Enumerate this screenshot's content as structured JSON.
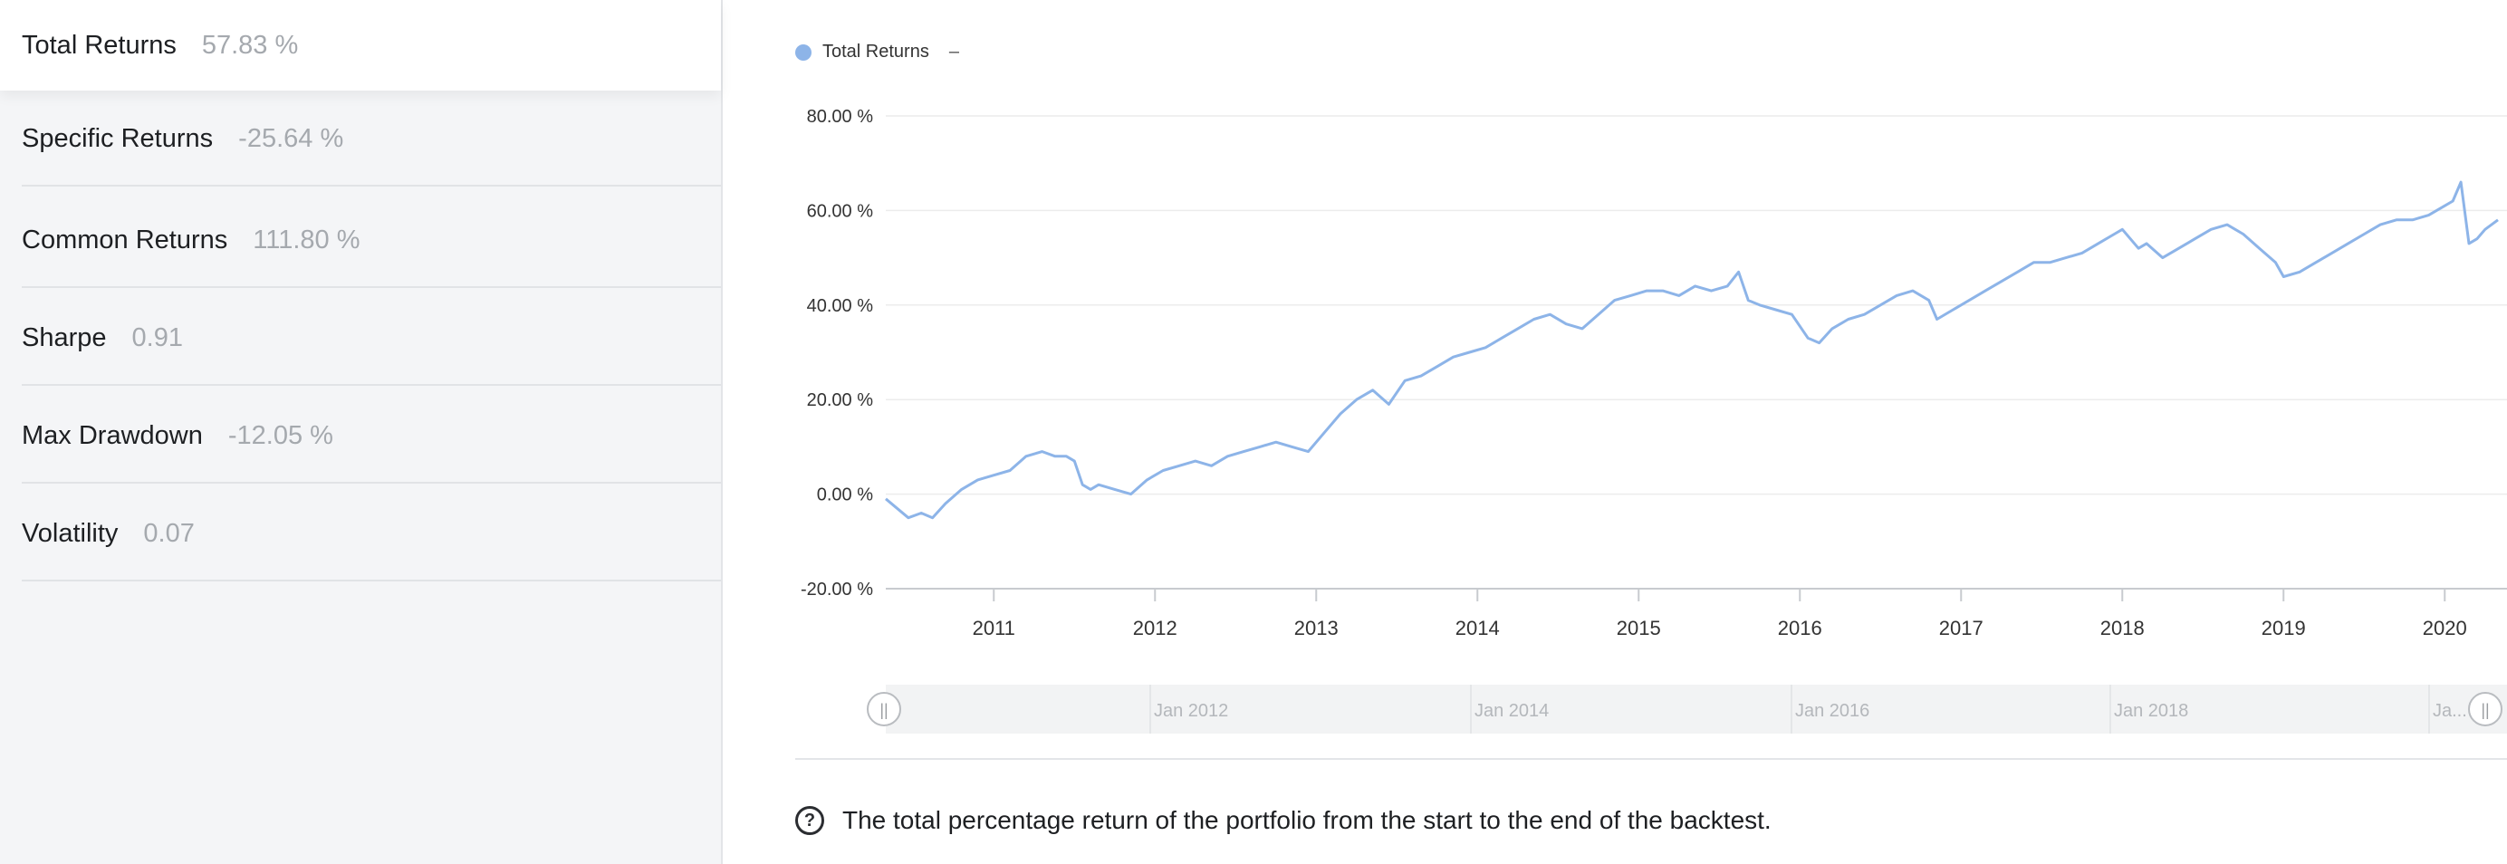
{
  "sidebar": {
    "metrics": [
      {
        "label": "Total Returns",
        "value": "57.83 %"
      },
      {
        "label": "Specific Returns",
        "value": "-25.64 %"
      },
      {
        "label": "Common Returns",
        "value": "111.80 %"
      },
      {
        "label": "Sharpe",
        "value": "0.91"
      },
      {
        "label": "Max Drawdown",
        "value": "-12.05 %"
      },
      {
        "label": "Volatility",
        "value": "0.07"
      }
    ],
    "active_index": 0
  },
  "legend": {
    "label": "Total Returns",
    "suffix": "–",
    "color": "#8db4e8"
  },
  "chart_data": {
    "type": "line",
    "title": "",
    "xlabel": "",
    "ylabel": "",
    "y_ticks": [
      "80.00 %",
      "60.00 %",
      "40.00 %",
      "20.00 %",
      "0.00 %",
      "-20.00 %"
    ],
    "ylim": [
      -20,
      80
    ],
    "x_ticks": [
      "2011",
      "2012",
      "2013",
      "2014",
      "2015",
      "2016",
      "2017",
      "2018",
      "2019",
      "2020"
    ],
    "xlim": [
      2010.33,
      2020.33
    ],
    "grid": true,
    "series": [
      {
        "name": "Total Returns",
        "color": "#8db4e8",
        "x": [
          2010.33,
          2010.4,
          2010.47,
          2010.55,
          2010.62,
          2010.7,
          2010.8,
          2010.9,
          2011.0,
          2011.1,
          2011.2,
          2011.3,
          2011.38,
          2011.45,
          2011.5,
          2011.55,
          2011.6,
          2011.65,
          2011.75,
          2011.85,
          2011.95,
          2012.05,
          2012.15,
          2012.25,
          2012.35,
          2012.45,
          2012.55,
          2012.65,
          2012.75,
          2012.85,
          2012.95,
          2013.05,
          2013.15,
          2013.25,
          2013.35,
          2013.45,
          2013.55,
          2013.65,
          2013.75,
          2013.85,
          2013.95,
          2014.05,
          2014.15,
          2014.25,
          2014.35,
          2014.45,
          2014.55,
          2014.65,
          2014.75,
          2014.85,
          2014.95,
          2015.05,
          2015.15,
          2015.25,
          2015.35,
          2015.45,
          2015.55,
          2015.62,
          2015.68,
          2015.75,
          2015.85,
          2015.95,
          2016.05,
          2016.12,
          2016.2,
          2016.3,
          2016.4,
          2016.5,
          2016.6,
          2016.7,
          2016.8,
          2016.85,
          2016.95,
          2017.05,
          2017.15,
          2017.25,
          2017.35,
          2017.45,
          2017.55,
          2017.65,
          2017.75,
          2017.85,
          2017.95,
          2018.0,
          2018.1,
          2018.15,
          2018.25,
          2018.35,
          2018.45,
          2018.55,
          2018.65,
          2018.75,
          2018.85,
          2018.95,
          2019.0,
          2019.1,
          2019.2,
          2019.3,
          2019.4,
          2019.5,
          2019.6,
          2019.7,
          2019.8,
          2019.9,
          2020.0,
          2020.05,
          2020.1,
          2020.15,
          2020.2,
          2020.25,
          2020.33
        ],
        "y": [
          -1,
          -3,
          -5,
          -4,
          -5,
          -2,
          1,
          3,
          4,
          5,
          8,
          9,
          8,
          8,
          7,
          2,
          1,
          2,
          1,
          0,
          3,
          5,
          6,
          7,
          6,
          8,
          9,
          10,
          11,
          10,
          9,
          13,
          17,
          20,
          22,
          19,
          24,
          25,
          27,
          29,
          30,
          31,
          33,
          35,
          37,
          38,
          36,
          35,
          38,
          41,
          42,
          43,
          43,
          42,
          44,
          43,
          44,
          47,
          41,
          40,
          39,
          38,
          33,
          32,
          35,
          37,
          38,
          40,
          42,
          43,
          41,
          37,
          39,
          41,
          43,
          45,
          47,
          49,
          49,
          50,
          51,
          53,
          55,
          56,
          52,
          53,
          50,
          52,
          54,
          56,
          57,
          55,
          52,
          49,
          46,
          47,
          49,
          51,
          53,
          55,
          57,
          58,
          58,
          59,
          61,
          62,
          66,
          53,
          54,
          56,
          58
        ]
      }
    ],
    "navigator": {
      "labels": [
        "Jan 2012",
        "Jan 2014",
        "Jan 2016",
        "Jan 2018",
        "Ja..."
      ],
      "handle_glyph": "||"
    }
  },
  "help": {
    "icon": "question-circle-icon",
    "glyph": "?",
    "text": "The total percentage return of the portfolio from the start to the end of the backtest."
  }
}
